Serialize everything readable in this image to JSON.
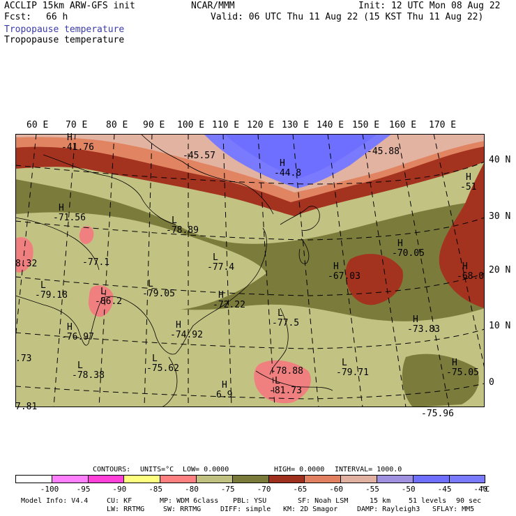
{
  "header": {
    "line1_left": "ACCLIP 15km ARW-GFS init",
    "center": "NCAR/MMM",
    "line1_right": "Init: 12 UTC Mon 08 Aug 22",
    "fcst_label": "Fcst:",
    "fcst_value": "66 h",
    "valid": "Valid: 06 UTC Thu 11 Aug 22 (15 KST Thu 11 Aug 22)",
    "field_title_1": "Tropopause temperature",
    "field_title_2": "Tropopause temperature"
  },
  "map": {
    "lon_labels": [
      "60 E",
      "70 E",
      "80 E",
      "90 E",
      "100 E",
      "110 E",
      "120 E",
      "130 E",
      "140 E",
      "150 E",
      "160 E",
      "170 E"
    ],
    "lat_labels": [
      "40 N",
      "30 N",
      "20 N",
      "10 N",
      "0"
    ],
    "pressure_labels": [
      {
        "sym": "H",
        "val": "-41.76"
      },
      {
        "sym": "",
        "val": "-45.57"
      },
      {
        "sym": "",
        "val": "-45.88"
      },
      {
        "sym": "H",
        "val": "-44.8"
      },
      {
        "sym": "H",
        "val": "-51"
      },
      {
        "sym": "H",
        "val": "-71.56"
      },
      {
        "sym": "L",
        "val": "-78.89"
      },
      {
        "sym": "",
        "val": "8.32"
      },
      {
        "sym": "",
        "val": "-77.1"
      },
      {
        "sym": "L",
        "val": "-77.4"
      },
      {
        "sym": "H",
        "val": "-70.05"
      },
      {
        "sym": "H",
        "val": "-67.03"
      },
      {
        "sym": "H",
        "val": "-68.0"
      },
      {
        "sym": "L",
        "val": "-79.18"
      },
      {
        "sym": "L",
        "val": "-86.2"
      },
      {
        "sym": "L",
        "val": "-79.05"
      },
      {
        "sym": "H",
        "val": "-72.22"
      },
      {
        "sym": "L",
        "val": "-77.5"
      },
      {
        "sym": "H",
        "val": "-73.83"
      },
      {
        "sym": "H",
        "val": "-76.97"
      },
      {
        "sym": "H",
        "val": "-74.92"
      },
      {
        "sym": "",
        "val": ".73"
      },
      {
        "sym": "L",
        "val": "-78.38"
      },
      {
        "sym": "L",
        "val": "-75.62"
      },
      {
        "sym": "",
        "val": "-78.88"
      },
      {
        "sym": "L",
        "val": "-79.71"
      },
      {
        "sym": "H",
        "val": "-75.05"
      },
      {
        "sym": "L",
        "val": "-81.73"
      },
      {
        "sym": "",
        "val": "7.81"
      },
      {
        "sym": "H",
        "val": "6.9"
      },
      {
        "sym": "",
        "val": "-75.96"
      }
    ]
  },
  "colorbar": {
    "colors": [
      "#ffffff",
      "#ff80ff",
      "#ff40d8",
      "#ffff80",
      "#ff8080",
      "#c0c080",
      "#7a7a3a",
      "#a0301e",
      "#e08060",
      "#e0b0a0",
      "#a090e0",
      "#6f6fff",
      "#7a7aff"
    ],
    "labels": [
      "-100",
      "-95",
      "-90",
      "-85",
      "-80",
      "-75",
      "-70",
      "-65",
      "-60",
      "-55",
      "-50",
      "-45",
      "-40"
    ],
    "unit": "°C"
  },
  "contours": {
    "label": "CONTOURS:",
    "units": "UNITS=°C",
    "low": "LOW= 0.0000",
    "high": "HIGH= 0.0000",
    "interval": "INTERVAL= 1000.0"
  },
  "footer": {
    "model": "Model Info: V4.4",
    "cu": "CU: KF",
    "mp": "MP: WDM 6class",
    "pbl": "PBL: YSU",
    "sf": "SF: Noah LSM",
    "res": "15 km",
    "levels": "51 levels",
    "dt": "90 sec",
    "lw": "LW: RRTMG",
    "sw": "SW: RRTMG",
    "diff": "DIFF: simple",
    "km": "KM: 2D Smagor",
    "damp": "DAMP: Rayleigh3",
    "sflay": "SFLAY: MM5"
  }
}
